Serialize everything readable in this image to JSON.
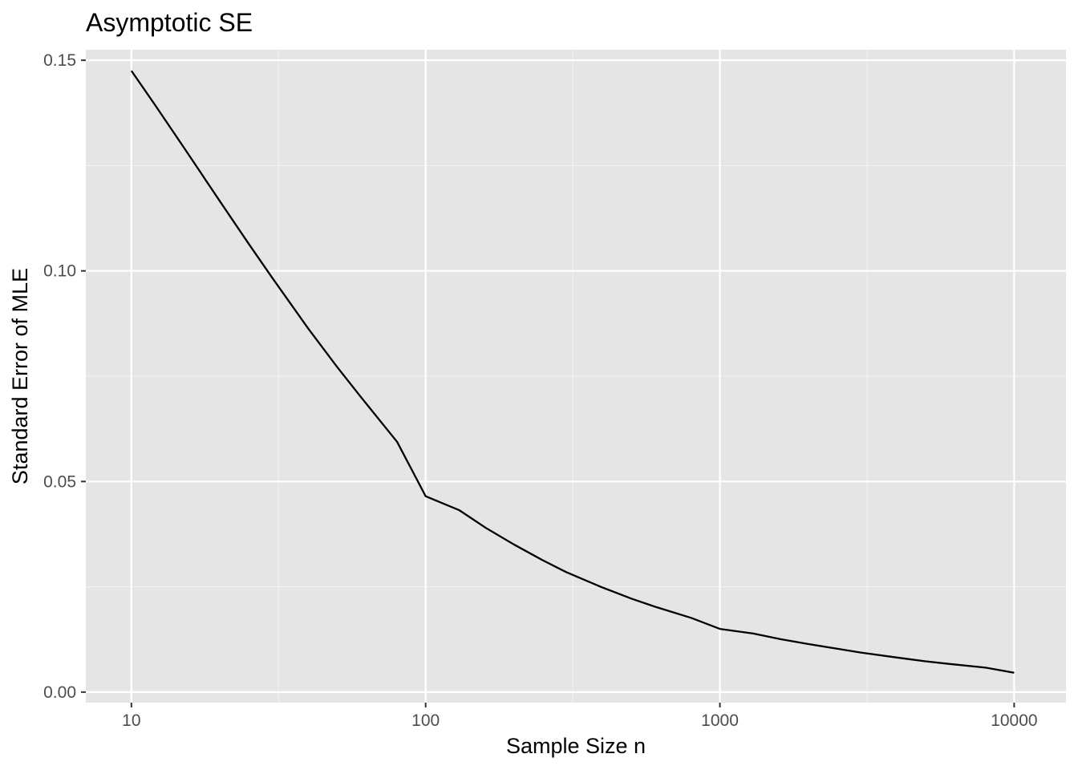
{
  "chart_data": {
    "type": "line",
    "title": "Asymptotic SE",
    "xlabel": "Sample Size n",
    "ylabel": "Standard Error of MLE",
    "x_scale": "log10",
    "xlim": [
      7.0,
      15000
    ],
    "ylim": [
      -0.0025,
      0.1525
    ],
    "x_ticks": [
      10,
      100,
      1000,
      10000
    ],
    "x_tick_labels": [
      "10",
      "100",
      "1000",
      "10000"
    ],
    "y_ticks": [
      0.0,
      0.05,
      0.1,
      0.15
    ],
    "y_tick_labels": [
      "0.00",
      "0.05",
      "0.10",
      "0.15"
    ],
    "grid": true,
    "series": [
      {
        "name": "SE",
        "x": [
          10,
          12,
          15,
          20,
          25,
          30,
          40,
          50,
          60,
          80,
          100,
          130,
          160,
          200,
          250,
          300,
          400,
          500,
          600,
          800,
          1000,
          1300,
          1600,
          2000,
          2500,
          3000,
          4000,
          5000,
          6000,
          8000,
          10000
        ],
        "y": [
          0.1475,
          0.1395,
          0.1295,
          0.1165,
          0.1065,
          0.0985,
          0.0862,
          0.0772,
          0.0702,
          0.0594,
          0.0465,
          0.0432,
          0.039,
          0.035,
          0.0313,
          0.0285,
          0.0248,
          0.0222,
          0.0203,
          0.0176,
          0.015,
          0.0139,
          0.0126,
          0.0114,
          0.0103,
          0.0094,
          0.0082,
          0.0073,
          0.0067,
          0.0058,
          0.0046
        ]
      }
    ]
  }
}
